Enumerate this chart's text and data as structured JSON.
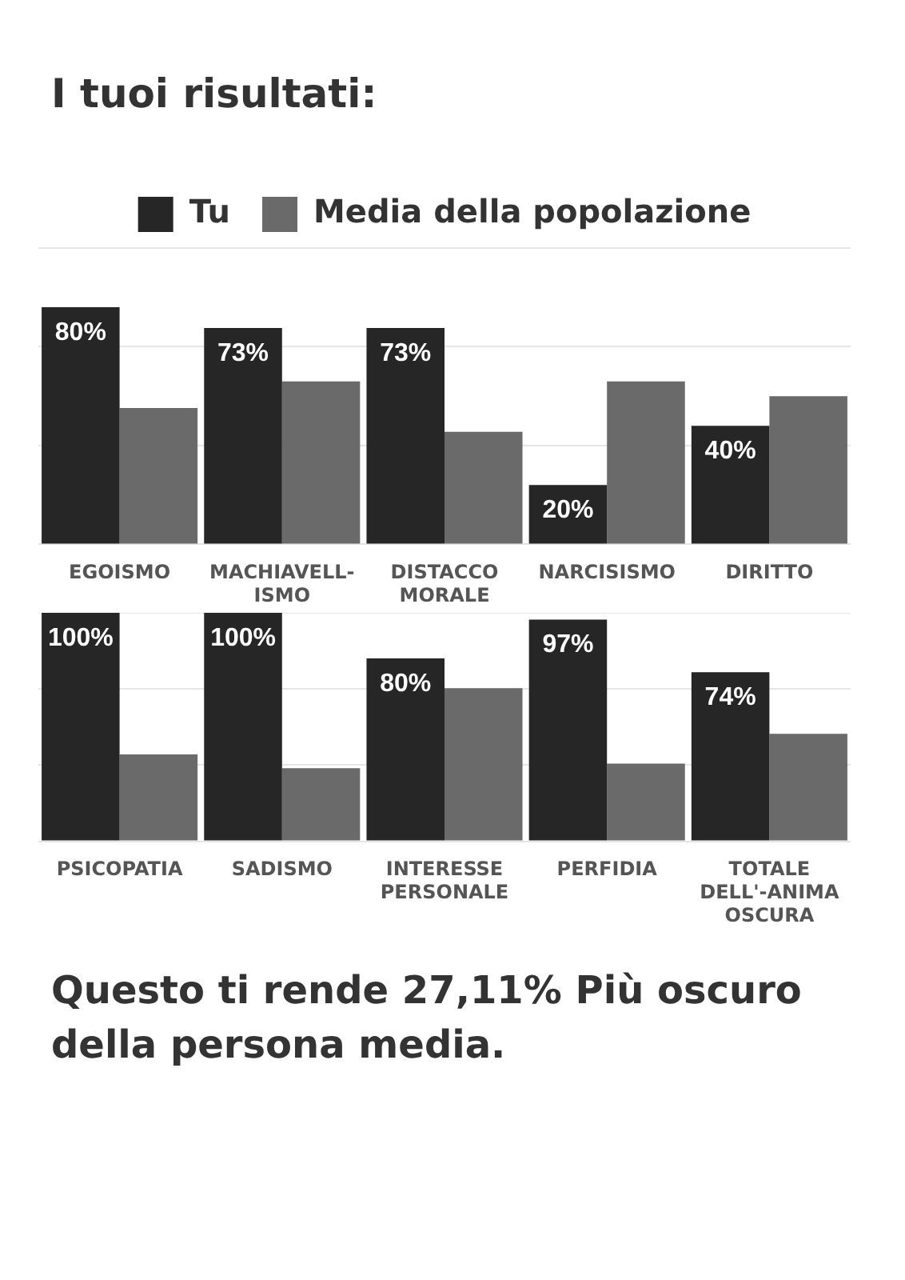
{
  "chart_data": [
    {
      "type": "bar",
      "title": "I tuoi risultati:",
      "categories": [
        "EGOISMO",
        "MACHIAVELL-ISMO",
        "DISTACCO MORALE",
        "NARCISISMO",
        "DIRITTO"
      ],
      "series": [
        {
          "name": "Tu",
          "color": "#262626",
          "values": [
            80,
            73,
            73,
            20,
            40
          ],
          "value_labels": [
            "80%",
            "73%",
            "73%",
            "20%",
            "40%"
          ]
        },
        {
          "name": "Media della popolazione",
          "color": "#6a6a6a",
          "values": [
            46,
            55,
            38,
            55,
            50
          ]
        }
      ],
      "ylim": [
        0,
        100
      ],
      "yticks": [
        {
          "value": 0,
          "label": null
        },
        {
          "value": 33.3,
          "label": null
        },
        {
          "value": 66.7,
          "label": null
        },
        {
          "value": 100,
          "label": null
        }
      ],
      "grid": "y",
      "tick_labels": "x",
      "legend": "top"
    },
    {
      "type": "bar",
      "categories": [
        "PSICOPATIA",
        "SADISMO",
        "INTERESSE PERSONALE",
        "PERFIDIA",
        "TOTALE DELL'-ANIMA OSCURA"
      ],
      "series": [
        {
          "color": "#262626",
          "values": [
            100,
            100,
            80,
            97,
            74
          ],
          "value_labels": [
            "100%",
            "100%",
            "80%",
            "97%",
            "74%"
          ]
        },
        {
          "color": "#6a6a6a",
          "values": [
            38,
            32,
            67,
            34,
            47
          ]
        }
      ],
      "ylim": [
        0,
        100
      ],
      "yticks": [
        {
          "value": 0,
          "label": null
        },
        {
          "value": 33.3,
          "label": null
        },
        {
          "value": 66.7,
          "label": null
        },
        {
          "value": 100,
          "label": null
        }
      ],
      "grid": "y",
      "tick_labels": "x",
      "annotations": [
        "Questo ti rende 27,11% Più oscuro della persona media."
      ]
    }
  ]
}
